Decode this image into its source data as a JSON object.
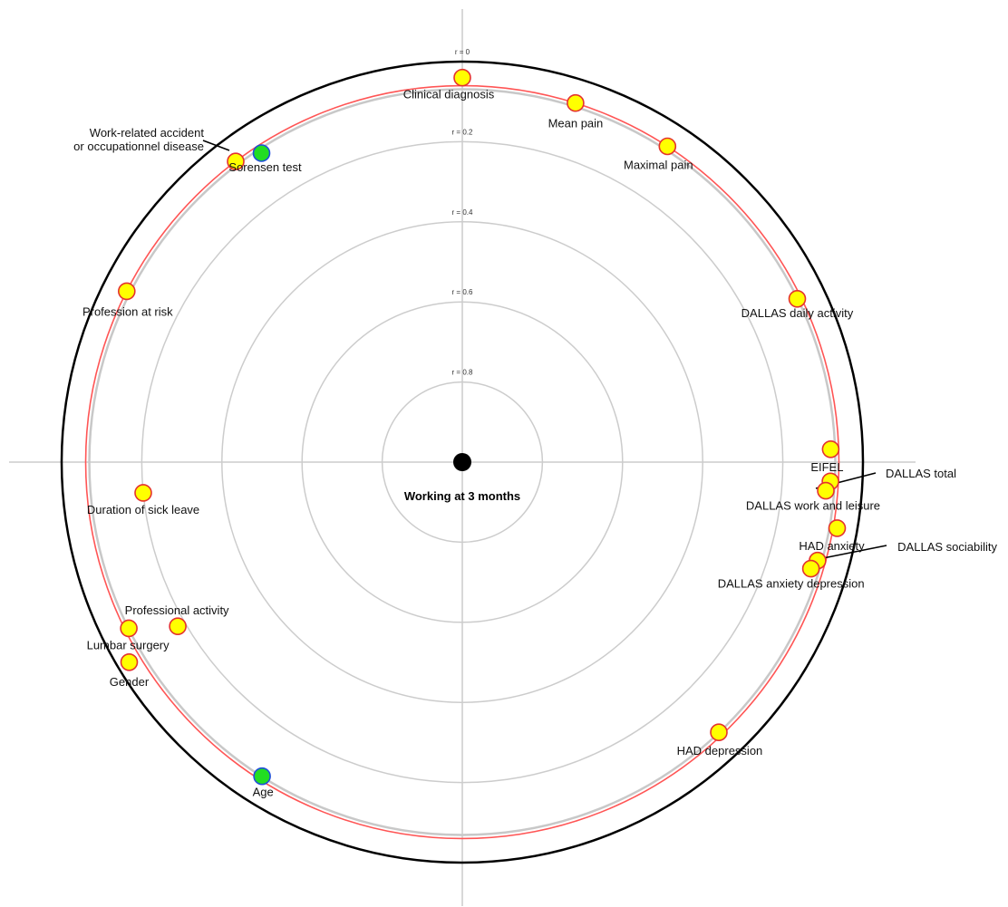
{
  "chart_data": {
    "type": "scatter",
    "title": "",
    "center_label": "Working at 3 months",
    "ring_labels": [
      {
        "r": 0,
        "label": "r = 0"
      },
      {
        "r": 0.2,
        "label": "r = 0.2"
      },
      {
        "r": 0.4,
        "label": "r = 0.4"
      },
      {
        "r": 0.6,
        "label": "r = 0.6"
      },
      {
        "r": 0.8,
        "label": "r = 0.8"
      }
    ],
    "significance_threshold_r": 0.06,
    "grid": true,
    "colors": {
      "nonsignificant_fill": "#ffff00",
      "nonsignificant_stroke": "#e4322e",
      "significant_fill": "#22dd22",
      "significant_stroke": "#1e4fd8",
      "threshold_circle": "#ff5555",
      "grid": "#cccccc",
      "outer_circle": "#000000"
    },
    "points": [
      {
        "name": "Clinical diagnosis",
        "r": 0.04,
        "angle_deg": 0,
        "significant": false
      },
      {
        "name": "Mean pain",
        "r": 0.06,
        "angle_deg": 17.5,
        "significant": false
      },
      {
        "name": "Maximal pain",
        "r": 0.06,
        "angle_deg": 33,
        "significant": false
      },
      {
        "name": "DALLAS daily activity",
        "r": 0.07,
        "angle_deg": 64,
        "significant": false
      },
      {
        "name": "EIFEL",
        "r": 0.08,
        "angle_deg": 88,
        "significant": false
      },
      {
        "name": "DALLAS total",
        "r": 0.08,
        "angle_deg": 93,
        "significant": false
      },
      {
        "name": "DALLAS work and leisure",
        "r": 0.09,
        "angle_deg": 94.5,
        "significant": false
      },
      {
        "name": "HAD anxiety",
        "r": 0.05,
        "angle_deg": 100,
        "significant": false
      },
      {
        "name": "DALLAS sociability",
        "r": 0.08,
        "angle_deg": 105.5,
        "significant": false
      },
      {
        "name": "DALLAS anxiety depression",
        "r": 0.09,
        "angle_deg": 107,
        "significant": false
      },
      {
        "name": "HAD depression",
        "r": 0.07,
        "angle_deg": 136.5,
        "significant": false
      },
      {
        "name": "Age",
        "r": 0.07,
        "angle_deg": 212.5,
        "significant": true
      },
      {
        "name": "Gender",
        "r": 0.03,
        "angle_deg": 239,
        "significant": false
      },
      {
        "name": "Lumbar surgery",
        "r": 0.07,
        "angle_deg": 243.5,
        "significant": false
      },
      {
        "name": "Professional activity",
        "r": 0.18,
        "angle_deg": 240,
        "significant": false
      },
      {
        "name": "Duration of sick leave",
        "r": 0.2,
        "angle_deg": 264.5,
        "significant": false
      },
      {
        "name": "Profession at risk",
        "r": 0.06,
        "angle_deg": 297,
        "significant": false
      },
      {
        "name": "Work-related accident\nor occupationnel disease",
        "r": 0.06,
        "angle_deg": 323,
        "significant": false
      },
      {
        "name": "Sorensen test",
        "r": 0.08,
        "angle_deg": 327,
        "significant": true
      }
    ]
  }
}
